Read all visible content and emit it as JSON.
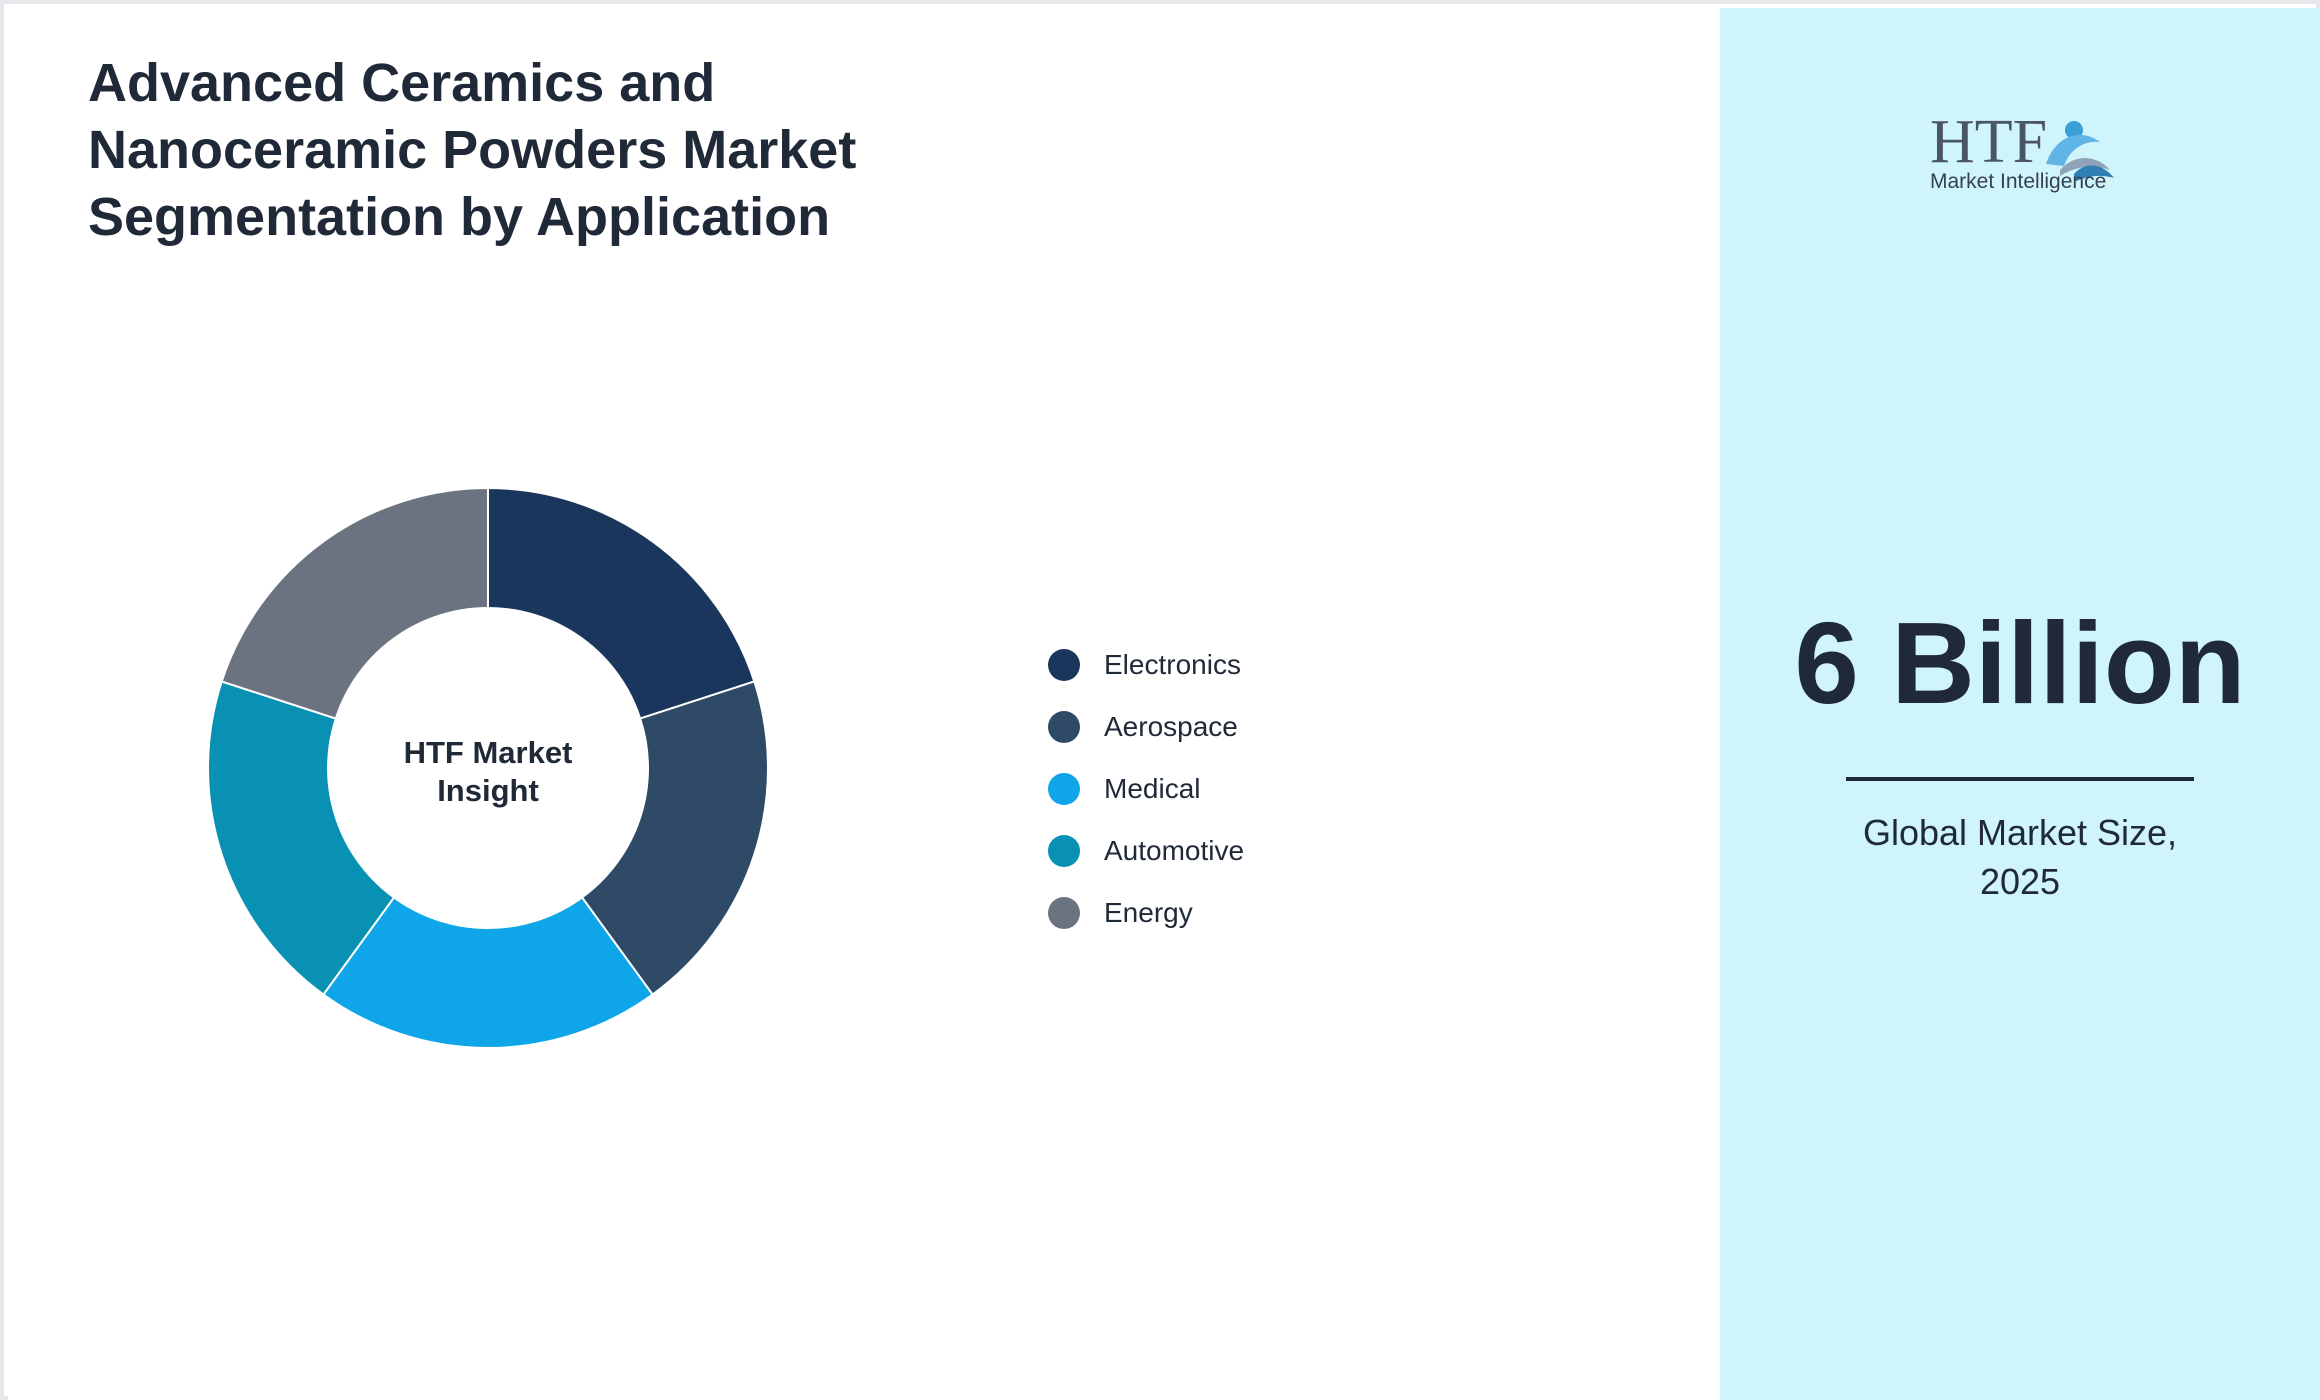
{
  "title": "Advanced Ceramics and Nanoceramic Powders Market Segmentation by Application",
  "chart_data": {
    "type": "pie",
    "variant": "donut",
    "center_label": "HTF Market Insight",
    "legend_position": "right",
    "categories": [
      "Electronics",
      "Aerospace",
      "Medical",
      "Automotive",
      "Energy"
    ],
    "values": [
      20,
      20,
      20,
      20,
      20
    ],
    "colors": [
      "#1b365d",
      "#2e4a66",
      "#0ea5e9",
      "#0891b2",
      "#6b7280"
    ]
  },
  "logo": {
    "brand": "HTF",
    "tagline": "Market Intelligence"
  },
  "summary": {
    "value": "6 Billion",
    "caption": "Global Market Size, 2025"
  }
}
